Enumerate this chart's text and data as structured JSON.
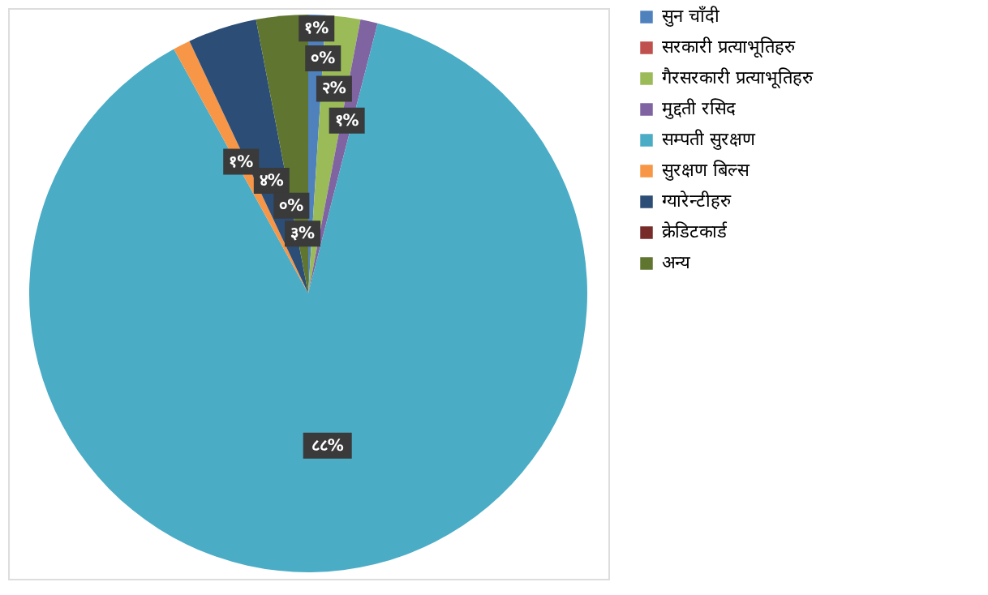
{
  "chart_data": {
    "type": "pie",
    "categories": [
      "सुन चाँदी",
      "सरकारी प्रत्याभूतिहरु",
      "गैरसरकारी प्रत्याभूतिहरु",
      "मुद्दती रसिद",
      "सम्पती सुरक्षण",
      "सुरक्षण बिल्स",
      "ग्यारेन्टीहरु",
      "क्रेडिटकार्ड",
      "अन्य"
    ],
    "values": [
      1,
      0,
      2,
      1,
      88,
      1,
      4,
      0,
      3
    ],
    "value_labels": [
      "१%",
      "०%",
      "२%",
      "१%",
      "८८%",
      "१%",
      "४%",
      "०%",
      "३%"
    ],
    "colors": [
      "#4f81bd",
      "#c0504d",
      "#9bbb59",
      "#8064a2",
      "#4bacc6",
      "#f79646",
      "#2c4d75",
      "#772c2a",
      "#5f7530"
    ],
    "legend": "right"
  }
}
